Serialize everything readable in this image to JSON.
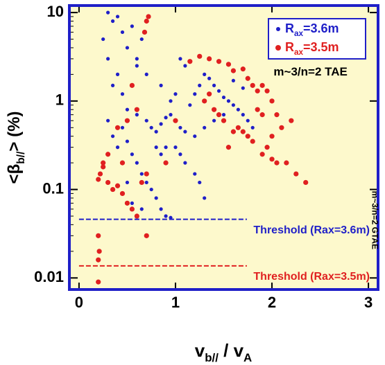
{
  "chart_data": {
    "type": "scatter",
    "xlabel": [
      "v",
      "b//",
      " / v",
      "A"
    ],
    "ylabel": [
      "<β",
      "b//",
      "> (%)"
    ],
    "xlim": [
      -0.1,
      3.1
    ],
    "ylim": [
      0.0074,
      12
    ],
    "log_y": true,
    "xticks": [
      0,
      1,
      2,
      3
    ],
    "yticks": [
      {
        "value": 0.01,
        "label": "0.01"
      },
      {
        "value": 0.1,
        "label": "0.1"
      },
      1,
      10
    ],
    "legend": "upper right",
    "background": "#fdf9cc",
    "frame_color": "#1f1fc8",
    "annotations": [
      {
        "text": "m~3/n=2 TAE",
        "x": 2.4,
        "y": 2.1
      },
      {
        "text": "m~3/n=2 GTAE",
        "x": 3.06,
        "y": 0.045,
        "rotate": 90
      }
    ],
    "thresholds": [
      {
        "label": "Threshold (Rax=3.6m)",
        "value": 0.046,
        "x": [
          0,
          1.74
        ],
        "color": "#1f1fc8"
      },
      {
        "label": "Threshold (Rax=3.5m)",
        "value": 0.0137,
        "x": [
          0,
          1.74
        ],
        "color": "#e02020"
      }
    ],
    "series": [
      {
        "name": [
          "R",
          "ax",
          "=3.6m"
        ],
        "color": "#1f1fc8",
        "x": [
          0.25,
          0.3,
          0.35,
          0.4,
          0.45,
          0.5,
          0.55,
          0.6,
          0.35,
          0.4,
          0.45,
          0.5,
          0.55,
          0.6,
          0.65,
          0.7,
          0.3,
          0.35,
          0.4,
          0.45,
          0.5,
          0.55,
          0.6,
          0.65,
          0.7,
          0.75,
          0.8,
          0.85,
          0.9,
          0.95,
          0.7,
          0.75,
          0.8,
          0.85,
          0.9,
          0.95,
          1.0,
          1.05,
          1.1,
          1.0,
          1.05,
          1.1,
          0.9,
          0.85,
          0.8,
          1.2,
          1.25,
          1.3,
          1.15,
          1.2,
          1.25,
          1.3,
          1.35,
          1.4,
          1.45,
          1.5,
          1.55,
          1.6,
          1.65,
          1.7,
          1.75,
          1.8,
          1.3,
          1.4,
          1.5,
          1.2,
          0.95,
          1.0,
          0.85,
          0.6,
          0.5,
          0.45,
          0.55,
          0.65,
          1.1,
          1.05,
          0.3,
          1.6,
          1.7
        ],
        "values": [
          5,
          3,
          8,
          9,
          6,
          4,
          7,
          3,
          1.5,
          2,
          1.2,
          0.8,
          1.5,
          2.5,
          5,
          2,
          0.6,
          0.4,
          0.3,
          0.5,
          0.35,
          0.25,
          0.2,
          0.15,
          0.12,
          0.1,
          0.08,
          0.06,
          0.05,
          0.048,
          0.6,
          0.5,
          0.45,
          0.55,
          0.65,
          0.7,
          0.6,
          0.5,
          0.45,
          0.3,
          0.25,
          0.2,
          0.3,
          0.25,
          0.3,
          0.15,
          0.12,
          0.08,
          0.9,
          1.2,
          1.5,
          2,
          1.8,
          1.5,
          1.3,
          1.1,
          1,
          0.9,
          0.8,
          0.7,
          0.6,
          0.5,
          0.5,
          0.6,
          0.7,
          0.4,
          1.0,
          1.2,
          1.5,
          0.7,
          0.12,
          0.09,
          0.07,
          0.06,
          2.5,
          3,
          10,
          1.7,
          1.4
        ]
      },
      {
        "name": [
          "R",
          "ax",
          "=3.5m"
        ],
        "color": "#e02020",
        "x": [
          0.2,
          0.22,
          0.25,
          0.3,
          0.35,
          0.4,
          0.45,
          0.5,
          0.55,
          0.6,
          0.65,
          0.7,
          0.2,
          0.2,
          0.2,
          0.21,
          0.7,
          0.25,
          0.3,
          0.4,
          0.5,
          0.6,
          0.45,
          0.55,
          0.7,
          0.72,
          0.68,
          0.9,
          1.0,
          1.15,
          1.25,
          1.35,
          1.45,
          1.55,
          1.6,
          1.7,
          1.75,
          1.8,
          1.85,
          1.9,
          1.95,
          1.85,
          1.9,
          2.0,
          2.05,
          2.1,
          2.0,
          1.95,
          1.8,
          1.75,
          1.7,
          1.65,
          1.5,
          1.45,
          1.4,
          1.55,
          1.9,
          2.0,
          2.05,
          2.15,
          2.25,
          2.35,
          1.3,
          1.35,
          2.2,
          1.6
        ],
        "values": [
          0.13,
          0.15,
          0.18,
          0.12,
          0.1,
          0.11,
          0.09,
          0.07,
          0.06,
          0.05,
          0.12,
          0.15,
          0.03,
          0.016,
          0.009,
          0.02,
          0.03,
          0.2,
          0.25,
          0.5,
          0.6,
          0.8,
          0.2,
          1.5,
          8,
          9,
          6,
          0.2,
          0.6,
          2.8,
          3.2,
          3,
          2.8,
          2.6,
          2.2,
          2.3,
          1.8,
          1.5,
          1.3,
          1.5,
          1.3,
          0.8,
          0.7,
          1.0,
          0.7,
          0.5,
          0.4,
          0.3,
          0.35,
          0.4,
          0.45,
          0.5,
          0.6,
          0.7,
          0.8,
          0.3,
          0.25,
          0.22,
          0.2,
          0.2,
          0.15,
          0.12,
          1.0,
          1.2,
          0.6,
          0.45
        ]
      }
    ]
  }
}
